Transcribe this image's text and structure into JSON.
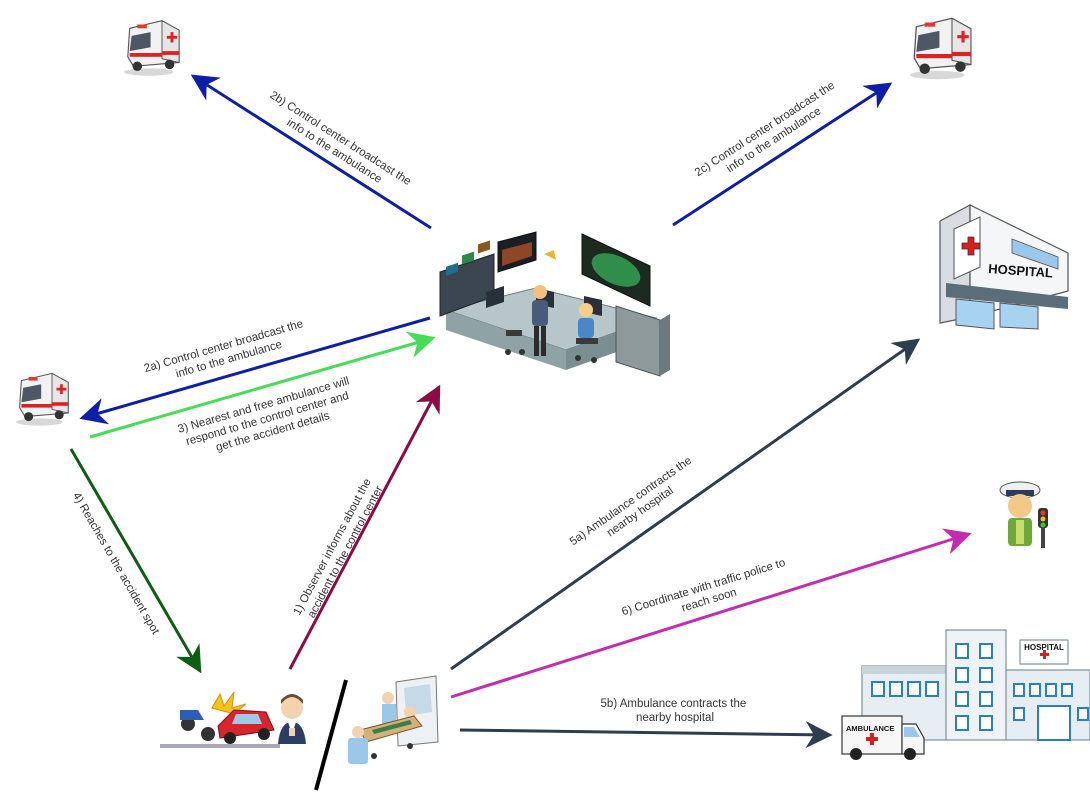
{
  "labels": {
    "step_2b_line1": "2b) Control center broadcast the",
    "step_2b_line2": "info to the ambulance",
    "step_2c_line1": "2c) Control center broadcast the",
    "step_2c_line2": "info to the ambulance",
    "step_2a_line1": "2a) Control center broadcast the",
    "step_2a_line2": "info to the ambulance",
    "step_3_line1": "3) Nearest and free ambulance will",
    "step_3_line2": "respond to the control center and",
    "step_3_line3": "get the accident details",
    "step_4_line1": "4) Reaches to the accident spot",
    "step_1_line1": "1) Observer informs about the",
    "step_1_line2": "accident to the control center",
    "step_5a_line1": "5a) Ambulance contracts the",
    "step_5a_line2": "nearby hospital",
    "step_6_line1": "6) Coordinate with traffic police to",
    "step_6_line2": "reach soon",
    "step_5b_line1": "5b) Ambulance contracts the",
    "step_5b_line2": "nearby hospital"
  },
  "icon_text": {
    "hospital_sign": "HOSPITAL",
    "hospital_sign_small": "HOSPITAL",
    "ambulance_side": "AMBULANCE"
  },
  "colors": {
    "broadcast": "#0d1fa8",
    "respond": "#44dd55",
    "reach": "#0d5e12",
    "observer": "#8b0b45",
    "hospital": "#2f3e4e",
    "police": "#c42bb1"
  },
  "icons": [
    "ambulance-icon",
    "control-center-icon",
    "hospital-icon",
    "traffic-police-icon",
    "accident-icon",
    "observer-icon",
    "patient-stretcher-icon",
    "hospital-building-icon"
  ]
}
